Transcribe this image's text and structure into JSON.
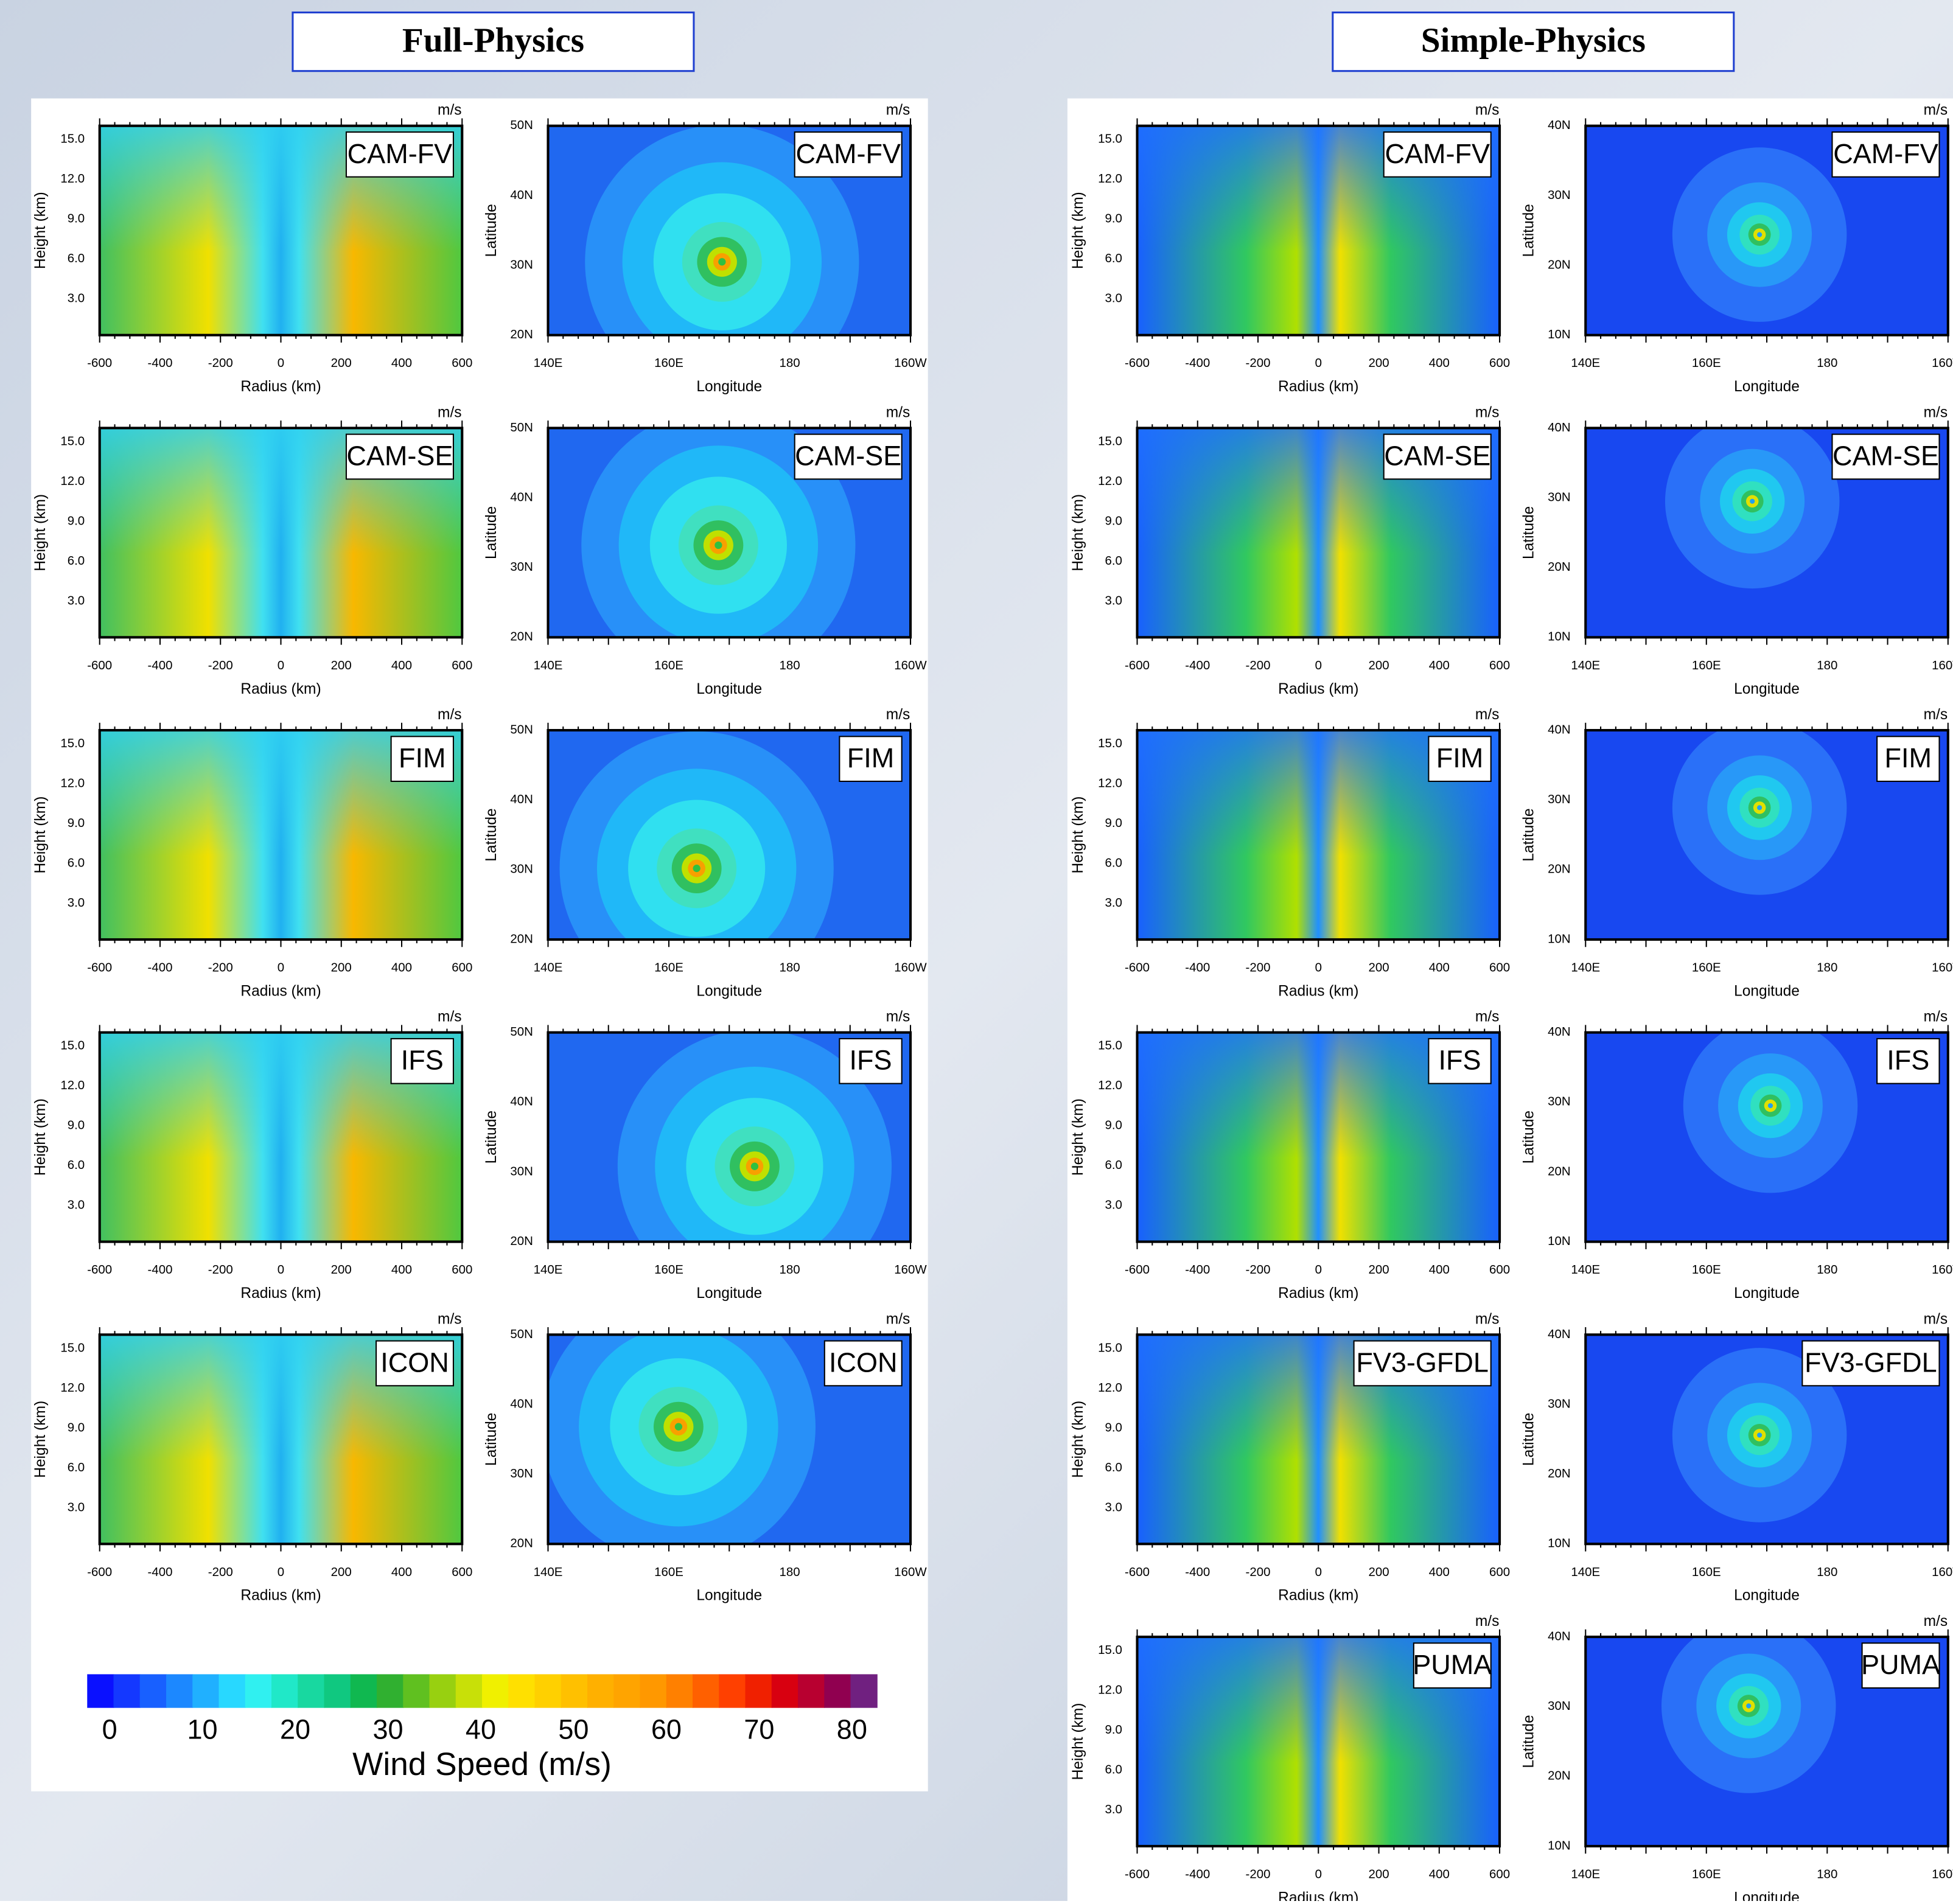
{
  "sections": [
    {
      "title": "Full-Physics",
      "models": [
        "CAM-FV",
        "CAM-SE",
        "FIM",
        "IFS",
        "ICON"
      ],
      "map_y_ticks": [
        "50N",
        "40N",
        "30N",
        "20N"
      ]
    },
    {
      "title": "Simple-Physics",
      "models": [
        "CAM-FV",
        "CAM-SE",
        "FIM",
        "IFS",
        "FV3-GFDL",
        "PUMA"
      ],
      "map_y_ticks": [
        "40N",
        "30N",
        "20N",
        "10N"
      ]
    }
  ],
  "cross_section": {
    "unit": "m/s",
    "y_label": "Height (km)",
    "x_label": "Radius (km)",
    "y_ticks": [
      "15.0",
      "12.0",
      "9.0",
      "6.0",
      "3.0"
    ],
    "x_ticks": [
      "-600",
      "-400",
      "-200",
      "0",
      "200",
      "400",
      "600"
    ]
  },
  "map": {
    "unit": "m/s",
    "y_label": "Latitude",
    "x_label": "Longitude",
    "x_ticks": [
      "140E",
      "160E",
      "180",
      "160W"
    ]
  },
  "colorbar": {
    "ticks": [
      "0",
      "10",
      "20",
      "30",
      "40",
      "50",
      "60",
      "70",
      "80"
    ],
    "label": "Wind Speed (m/s)"
  }
}
